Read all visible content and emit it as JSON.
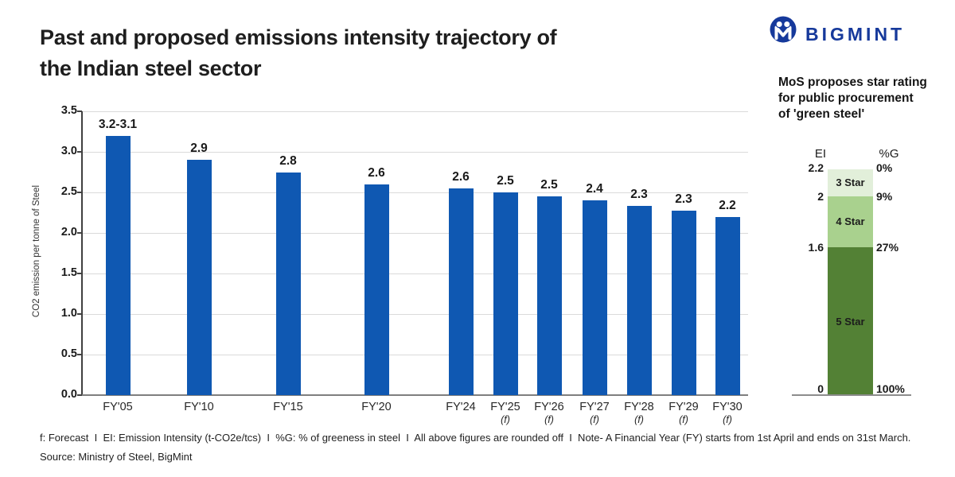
{
  "header": {
    "title_line1": "Past and proposed emissions intensity trajectory of",
    "title_line2": "the Indian steel sector",
    "brand": "BIGMINT"
  },
  "chart_data": [
    {
      "type": "bar",
      "title": "Past and proposed emissions intensity trajectory of the Indian steel sector",
      "xlabel": "",
      "ylabel": "CO2 emission per tonne of Steel",
      "ylim": [
        0,
        3.5
      ],
      "yticks": [
        "0.0",
        "0.5",
        "1.0",
        "1.5",
        "2.0",
        "2.5",
        "3.0",
        "3.5"
      ],
      "grid": true,
      "bar_color": "#0f58b2",
      "categories": [
        "FY'05",
        "FY'10",
        "FY'15",
        "FY'20",
        "FY'24",
        "FY'25",
        "FY'26",
        "FY'27",
        "FY'28",
        "FY'29",
        "FY'30"
      ],
      "forecast": [
        false,
        false,
        false,
        false,
        false,
        true,
        true,
        true,
        true,
        true,
        true
      ],
      "forecast_suffix": "(f)",
      "labels": [
        "3.2-3.1",
        "2.9",
        "2.8",
        "2.6",
        "2.6",
        "2.5",
        "2.5",
        "2.4",
        "2.3",
        "2.3",
        "2.2"
      ],
      "values": [
        3.2,
        2.9,
        2.75,
        2.6,
        2.55,
        2.5,
        2.45,
        2.4,
        2.33,
        2.27,
        2.2
      ]
    },
    {
      "type": "bar",
      "subtype": "stacked-single-column",
      "title": "MoS proposes star rating for public procurement of 'green steel'",
      "col_headers": [
        "EI",
        "%G"
      ],
      "segments": [
        {
          "label": "3 Star",
          "color": "#e2efda",
          "ei_from": "2.2",
          "ei_to": "2",
          "pct_from": "0%",
          "pct_to": "9%"
        },
        {
          "label": "4 Star",
          "color": "#a9d18e",
          "ei_from": "2",
          "ei_to": "1.6",
          "pct_from": "9%",
          "pct_to": "27%"
        },
        {
          "label": "5 Star",
          "color": "#538135",
          "ei_from": "1.6",
          "ei_to": "0",
          "pct_from": "27%",
          "pct_to": "100%"
        }
      ],
      "ei_scale": [
        "2.2",
        "2",
        "1.6",
        "0"
      ],
      "pct_scale": [
        "0%",
        "9%",
        "27%",
        "100%"
      ]
    }
  ],
  "side": {
    "title_line1": "MoS proposes star rating",
    "title_line2": "for public procurement",
    "title_line3": "of 'green steel'",
    "ei_header": "EI",
    "pct_header": "%G"
  },
  "footer": {
    "notes": "f: Forecast  I  EI: Emission Intensity (t-CO2e/tcs)  I  %G: % of greeness in steel  I  All above figures are rounded off  I  Note- A Financial Year (FY) starts from 1st April and ends on 31st March.",
    "source": "Source: Ministry of Steel, BigMint"
  },
  "colors": {
    "bar_blue": "#0f58b2",
    "brand_blue": "#16399b",
    "star3_green": "#e2efda",
    "star4_green": "#a9d18e",
    "star5_green": "#538135",
    "gridline": "#dadada"
  }
}
